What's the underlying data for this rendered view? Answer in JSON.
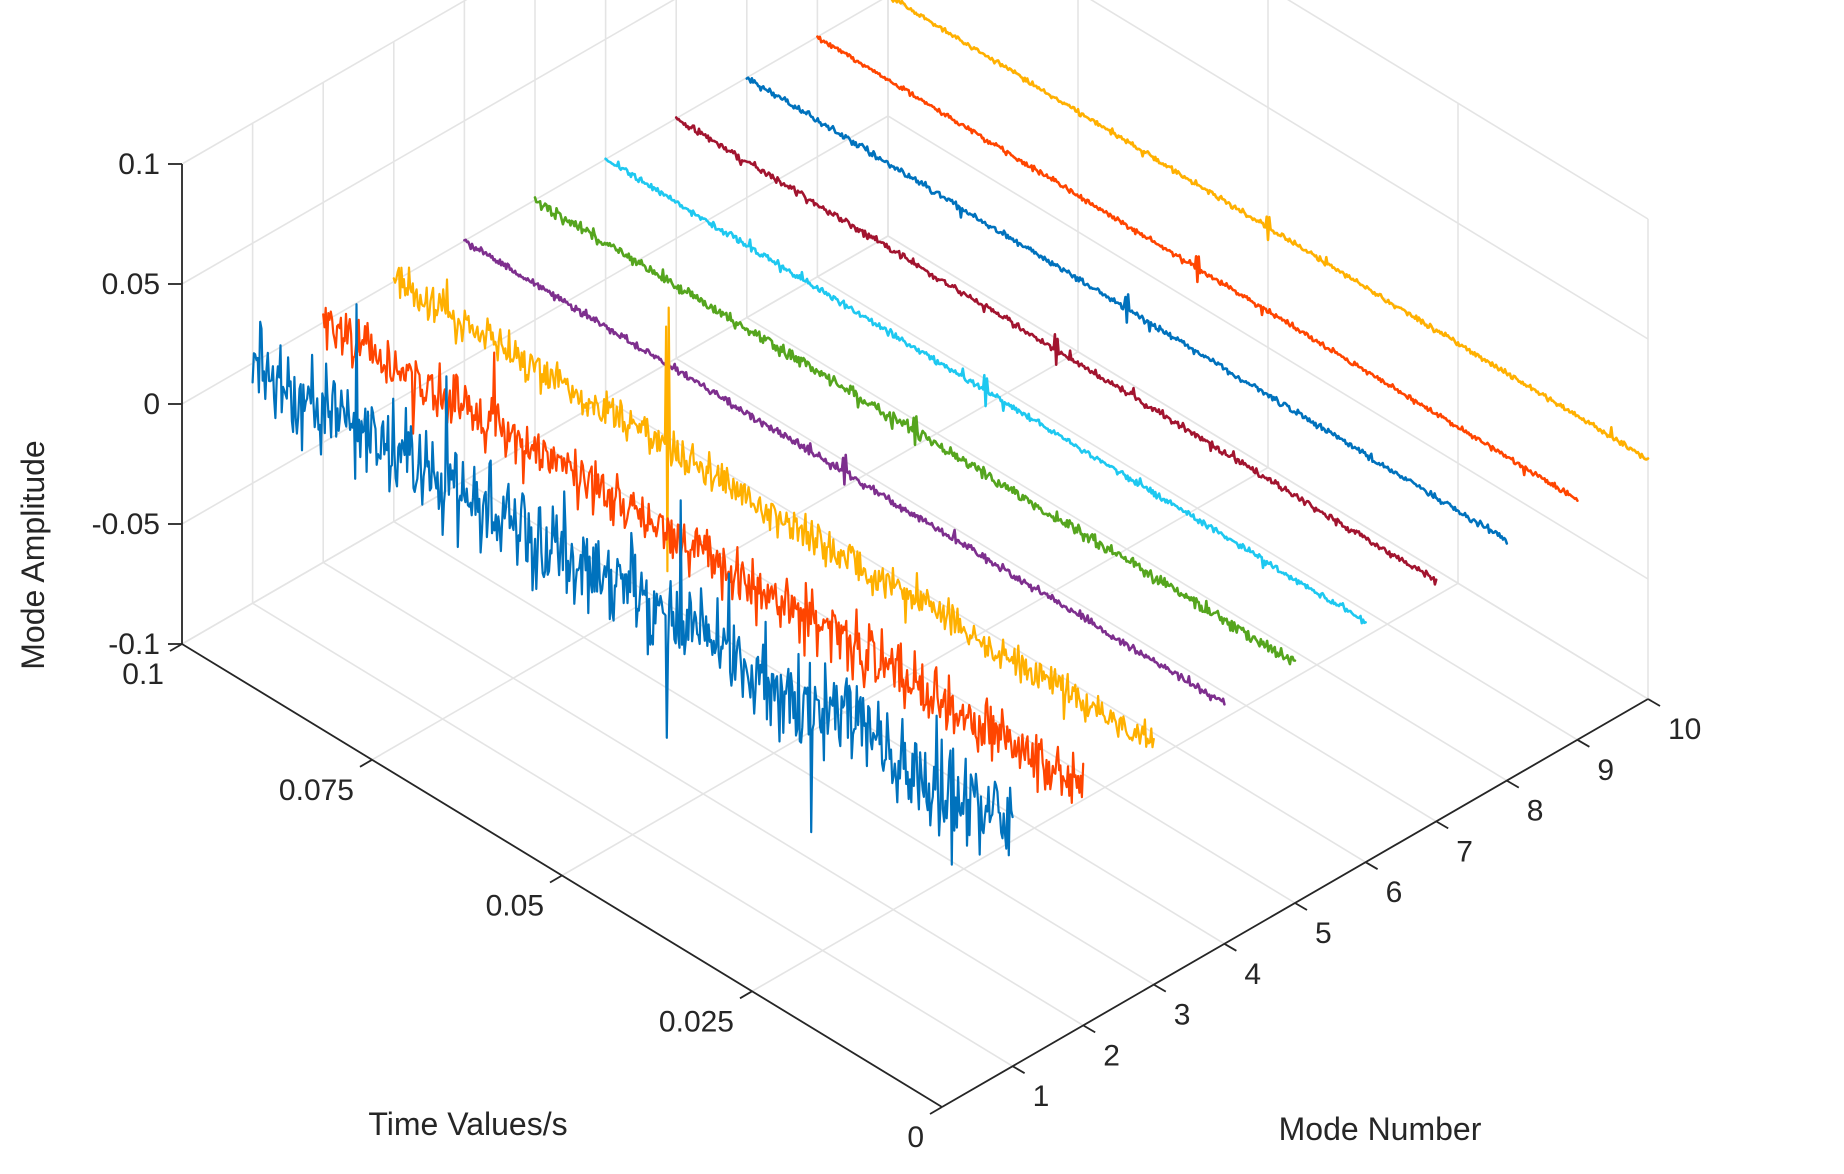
{
  "chart_data": {
    "type": "line",
    "projection": "3d",
    "title": "",
    "xlabel": "Mode Number",
    "ylabel": "Time Values/s",
    "zlabel": "Mode Amplitude",
    "xlim": [
      0,
      10
    ],
    "ylim": [
      0,
      0.1
    ],
    "zlim": [
      -0.1,
      0.1
    ],
    "grid": true,
    "x_ticks": [
      {
        "value": 1,
        "label": "1"
      },
      {
        "value": 2,
        "label": "2"
      },
      {
        "value": 3,
        "label": "3"
      },
      {
        "value": 4,
        "label": "4"
      },
      {
        "value": 5,
        "label": "5"
      },
      {
        "value": 6,
        "label": "6"
      },
      {
        "value": 7,
        "label": "7"
      },
      {
        "value": 8,
        "label": "8"
      },
      {
        "value": 9,
        "label": "9"
      },
      {
        "value": 10,
        "label": "10"
      }
    ],
    "y_ticks": [
      {
        "value": 0,
        "label": "0"
      },
      {
        "value": 0.025,
        "label": "0.025"
      },
      {
        "value": 0.05,
        "label": "0.05"
      },
      {
        "value": 0.075,
        "label": "0.075"
      },
      {
        "value": 0.1,
        "label": "0.1"
      }
    ],
    "z_ticks": [
      {
        "value": -0.1,
        "label": "-0.1"
      },
      {
        "value": -0.05,
        "label": "-0.05"
      },
      {
        "value": 0,
        "label": "0"
      },
      {
        "value": 0.05,
        "label": "0.05"
      },
      {
        "value": 0.1,
        "label": "0.1"
      }
    ],
    "time_range": [
      0,
      0.1
    ],
    "series": [
      {
        "name": "Mode 1",
        "mode": 1,
        "color": "#0072BD",
        "noise_amplitude": 0.018,
        "spike_amplitude": 0.025,
        "spike_time": 0.008
      },
      {
        "name": "Mode 2",
        "mode": 2,
        "color": "#FF4500",
        "noise_amplitude": 0.011,
        "spike_amplitude": 0.0,
        "spike_time": 0.05
      },
      {
        "name": "Mode 3",
        "mode": 3,
        "color": "#FFB000",
        "noise_amplitude": 0.007,
        "spike_amplitude": 0.055,
        "spike_time": 0.064
      },
      {
        "name": "Mode 4",
        "mode": 4,
        "color": "#7E2F8E",
        "noise_amplitude": 0.0015,
        "spike_amplitude": 0.006,
        "spike_time": 0.05
      },
      {
        "name": "Mode 5",
        "mode": 5,
        "color": "#55A51E",
        "noise_amplitude": 0.0022,
        "spike_amplitude": 0.005,
        "spike_time": 0.05
      },
      {
        "name": "Mode 6",
        "mode": 6,
        "color": "#1EC8F0",
        "noise_amplitude": 0.0012,
        "spike_amplitude": 0.006,
        "spike_time": 0.05
      },
      {
        "name": "Mode 7",
        "mode": 7,
        "color": "#A2142F",
        "noise_amplitude": 0.0012,
        "spike_amplitude": 0.006,
        "spike_time": 0.05
      },
      {
        "name": "Mode 8",
        "mode": 8,
        "color": "#0072BD",
        "noise_amplitude": 0.0012,
        "spike_amplitude": 0.006,
        "spike_time": 0.05
      },
      {
        "name": "Mode 9",
        "mode": 9,
        "color": "#FF4500",
        "noise_amplitude": 0.001,
        "spike_amplitude": 0.005,
        "spike_time": 0.05
      },
      {
        "name": "Mode 10",
        "mode": 10,
        "color": "#FFB000",
        "noise_amplitude": 0.001,
        "spike_amplitude": 0.005,
        "spike_time": 0.05
      }
    ]
  }
}
